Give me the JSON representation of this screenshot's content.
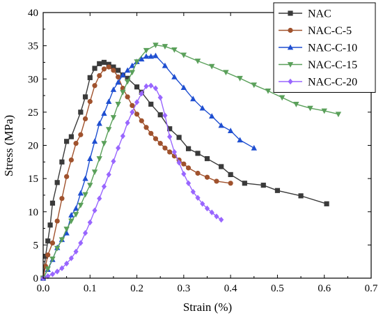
{
  "chart_data": {
    "type": "line",
    "title": "",
    "xlabel": "Strain (%)",
    "ylabel": "Stress (MPa)",
    "xlim": [
      0,
      0.7
    ],
    "ylim": [
      0,
      40
    ],
    "xticks": [
      "0.0",
      "0.1",
      "0.2",
      "0.3",
      "0.4",
      "0.5",
      "0.6",
      "0.7"
    ],
    "yticks": [
      "0",
      "5",
      "10",
      "15",
      "20",
      "25",
      "30",
      "35",
      "40"
    ],
    "grid": false,
    "legend_position": "top-right",
    "series": [
      {
        "name": "NAC",
        "color": "#3a3a3a",
        "marker": "square",
        "x": [
          0.0,
          0.005,
          0.01,
          0.015,
          0.02,
          0.03,
          0.04,
          0.05,
          0.06,
          0.08,
          0.09,
          0.1,
          0.11,
          0.12,
          0.13,
          0.14,
          0.15,
          0.16,
          0.17,
          0.18,
          0.2,
          0.21,
          0.23,
          0.25,
          0.27,
          0.29,
          0.31,
          0.33,
          0.35,
          0.38,
          0.4,
          0.43,
          0.47,
          0.5,
          0.55,
          0.605
        ],
        "y": [
          0.0,
          3.3,
          5.6,
          8.0,
          11.3,
          14.4,
          17.5,
          20.6,
          21.3,
          25.0,
          27.3,
          30.2,
          31.6,
          32.3,
          32.5,
          32.2,
          31.8,
          31.3,
          30.6,
          30.1,
          28.8,
          28.0,
          26.2,
          24.6,
          22.5,
          21.2,
          19.5,
          18.8,
          18.0,
          16.8,
          15.6,
          14.3,
          14.0,
          13.2,
          12.4,
          11.2
        ]
      },
      {
        "name": "NAC-C-5",
        "color": "#a0522d",
        "marker": "circle",
        "x": [
          0.0,
          0.005,
          0.01,
          0.02,
          0.03,
          0.04,
          0.05,
          0.06,
          0.07,
          0.08,
          0.09,
          0.1,
          0.11,
          0.12,
          0.13,
          0.14,
          0.15,
          0.16,
          0.17,
          0.18,
          0.19,
          0.2,
          0.21,
          0.22,
          0.23,
          0.24,
          0.25,
          0.26,
          0.27,
          0.28,
          0.29,
          0.3,
          0.31,
          0.33,
          0.35,
          0.37,
          0.4
        ],
        "y": [
          0.0,
          1.8,
          3.5,
          5.3,
          8.6,
          12.0,
          15.3,
          17.8,
          20.3,
          21.6,
          24.0,
          26.6,
          29.0,
          30.5,
          31.5,
          31.8,
          31.3,
          30.3,
          28.6,
          27.3,
          26.0,
          24.7,
          23.7,
          22.7,
          21.8,
          21.0,
          20.3,
          19.6,
          19.0,
          18.4,
          17.8,
          17.2,
          16.6,
          15.8,
          15.2,
          14.6,
          14.3
        ]
      },
      {
        "name": "NAC-C-10",
        "color": "#1f4fd1",
        "marker": "triangle-up",
        "x": [
          0.0,
          0.01,
          0.02,
          0.03,
          0.04,
          0.05,
          0.06,
          0.07,
          0.08,
          0.09,
          0.1,
          0.11,
          0.12,
          0.13,
          0.14,
          0.15,
          0.16,
          0.17,
          0.18,
          0.19,
          0.2,
          0.21,
          0.22,
          0.23,
          0.24,
          0.26,
          0.28,
          0.3,
          0.32,
          0.34,
          0.36,
          0.38,
          0.4,
          0.42,
          0.45
        ],
        "y": [
          0.0,
          1.3,
          2.8,
          4.6,
          5.8,
          6.8,
          9.5,
          10.5,
          12.8,
          15.0,
          18.0,
          20.6,
          23.3,
          24.8,
          26.6,
          28.4,
          29.5,
          30.6,
          31.3,
          32.0,
          32.6,
          33.0,
          33.4,
          33.4,
          33.5,
          32.0,
          30.3,
          28.7,
          27.0,
          25.6,
          24.4,
          23.0,
          22.2,
          20.8,
          19.6
        ]
      },
      {
        "name": "NAC-C-15",
        "color": "#5aa05a",
        "marker": "triangle-down",
        "x": [
          0.0,
          0.01,
          0.02,
          0.03,
          0.04,
          0.05,
          0.06,
          0.07,
          0.08,
          0.09,
          0.1,
          0.11,
          0.12,
          0.13,
          0.14,
          0.15,
          0.16,
          0.17,
          0.18,
          0.19,
          0.2,
          0.22,
          0.24,
          0.26,
          0.28,
          0.3,
          0.33,
          0.36,
          0.39,
          0.42,
          0.45,
          0.48,
          0.51,
          0.54,
          0.57,
          0.6,
          0.63
        ],
        "y": [
          0.0,
          1.4,
          2.9,
          4.5,
          5.8,
          7.4,
          8.6,
          9.6,
          11.0,
          12.6,
          14.0,
          16.0,
          18.0,
          20.3,
          22.4,
          24.2,
          26.2,
          28.0,
          29.6,
          31.0,
          32.6,
          34.3,
          35.1,
          34.9,
          34.4,
          33.6,
          32.7,
          31.9,
          31.0,
          30.1,
          29.1,
          28.2,
          27.2,
          26.2,
          25.6,
          25.2,
          24.7
        ]
      },
      {
        "name": "NAC-C-20",
        "color": "#9966ff",
        "marker": "diamond",
        "x": [
          0.0,
          0.01,
          0.02,
          0.03,
          0.04,
          0.05,
          0.06,
          0.07,
          0.08,
          0.09,
          0.1,
          0.11,
          0.12,
          0.13,
          0.14,
          0.15,
          0.16,
          0.17,
          0.18,
          0.19,
          0.2,
          0.21,
          0.22,
          0.23,
          0.24,
          0.25,
          0.26,
          0.27,
          0.28,
          0.29,
          0.3,
          0.31,
          0.32,
          0.33,
          0.34,
          0.35,
          0.36,
          0.37,
          0.38
        ],
        "y": [
          0.0,
          0.3,
          0.6,
          1.0,
          1.5,
          2.2,
          3.0,
          4.0,
          5.3,
          6.8,
          8.4,
          10.2,
          12.0,
          13.8,
          15.6,
          17.6,
          19.6,
          21.4,
          23.4,
          25.0,
          26.5,
          27.8,
          28.9,
          29.0,
          28.6,
          27.2,
          24.5,
          21.3,
          19.0,
          17.4,
          15.7,
          14.3,
          13.0,
          12.1,
          11.2,
          10.5,
          9.9,
          9.3,
          8.8
        ]
      }
    ]
  }
}
